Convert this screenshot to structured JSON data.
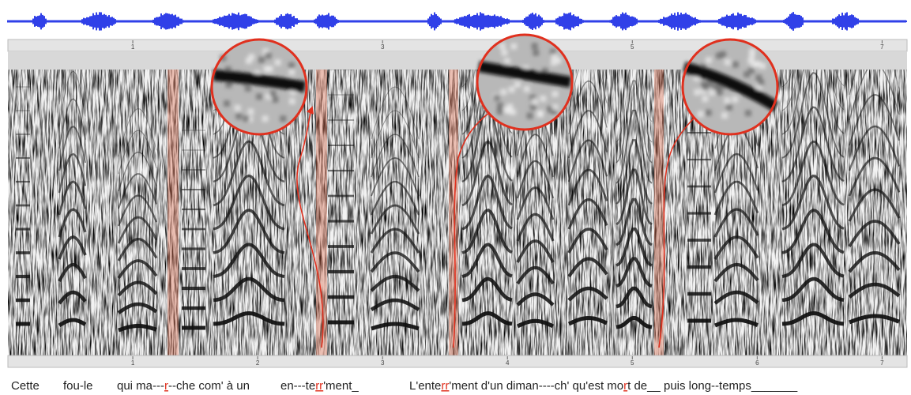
{
  "top_ruler": {
    "ticks": [
      1,
      3,
      5,
      7
    ],
    "xlim": [
      0,
      7.2
    ]
  },
  "bottom_ruler": {
    "ticks": [
      1,
      2,
      3,
      4,
      5,
      6,
      7
    ],
    "xlim": [
      0,
      7.2
    ]
  },
  "lyrics": [
    [
      {
        "text": "Cette"
      }
    ],
    [
      {
        "text": "fou-le"
      }
    ],
    [
      {
        "text": "qui ma---"
      },
      {
        "text": "r",
        "color": "#e0301e"
      },
      {
        "text": "--che com' à un"
      }
    ],
    [
      {
        "text": "en---te"
      },
      {
        "text": "rr",
        "color": "#e0301e"
      },
      {
        "text": "'ment_"
      }
    ],
    [
      {
        "text": "L'ente"
      },
      {
        "text": "rr",
        "color": "#e0301e"
      },
      {
        "text": "'ment d'un diman----ch' qu'est mo"
      },
      {
        "text": "r",
        "color": "#e0301e"
      },
      {
        "text": "t de__ puis long--temps_______"
      }
    ]
  ]
}
